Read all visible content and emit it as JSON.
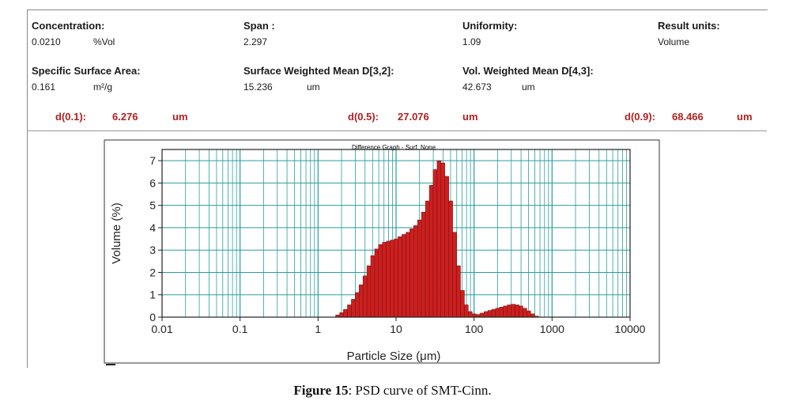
{
  "report": {
    "concentration": {
      "label": "Concentration:",
      "value": "0.0210",
      "unit": "%Vol"
    },
    "span": {
      "label": "Span :",
      "value": "2.297"
    },
    "uniformity": {
      "label": "Uniformity:",
      "value": "1.09"
    },
    "result_units": {
      "label": "Result units:",
      "value": "Volume"
    },
    "ssa": {
      "label": "Specific Surface Area:",
      "value": "0.161",
      "unit": "m²/g"
    },
    "d32": {
      "label": "Surface Weighted Mean D[3,2]:",
      "value": "15.236",
      "unit": "um"
    },
    "d43": {
      "label": "Vol. Weighted Mean D[4,3]:",
      "value": "42.673",
      "unit": "um"
    },
    "d01": {
      "label": "d(0.1):",
      "value": "6.276",
      "unit": "um"
    },
    "d05": {
      "label": "d(0.5):",
      "value": "27.076",
      "unit": "um"
    },
    "d09": {
      "label": "d(0.9):",
      "value": "68.466",
      "unit": "um"
    }
  },
  "caption": {
    "prefix": "Figure 15",
    "text": ": PSD curve of SMT-Cinn."
  },
  "colors": {
    "bar": "#cc1f1f",
    "bar_edge": "#5a0a0a",
    "grid": "#2a9d9d",
    "axis": "#222222"
  },
  "chart_data": {
    "type": "bar",
    "title": "Difference Graph - Surf. None",
    "xlabel": "Particle Size (μm)",
    "ylabel": "Volume (%)",
    "xscale": "log",
    "xlim": [
      0.01,
      10000
    ],
    "ylim": [
      0,
      7.5
    ],
    "xticks": [
      0.01,
      0.1,
      1,
      10,
      100,
      1000,
      10000
    ],
    "xtick_labels": [
      "0.01",
      "0.1",
      "1",
      "10",
      "100",
      "1000",
      "10000"
    ],
    "yticks": [
      0,
      1,
      2,
      3,
      4,
      5,
      6,
      7
    ],
    "ytick_labels": [
      "0",
      "1",
      "2",
      "3",
      "4",
      "5",
      "6",
      "7"
    ],
    "series": [
      {
        "name": "Volume (%)",
        "x": [
          1.78,
          2.0,
          2.24,
          2.52,
          2.83,
          3.17,
          3.56,
          3.99,
          4.48,
          5.02,
          5.64,
          6.32,
          7.1,
          7.96,
          8.93,
          10.0,
          11.2,
          12.6,
          14.2,
          15.9,
          17.8,
          20.0,
          22.4,
          25.2,
          28.3,
          31.7,
          35.6,
          39.9,
          44.8,
          50.2,
          56.4,
          63.2,
          71.0,
          79.6,
          89.3,
          100,
          112,
          126,
          142,
          159,
          178,
          200,
          224,
          252,
          283,
          317,
          356,
          399,
          448,
          502,
          564,
          632
        ],
        "values": [
          0.1,
          0.2,
          0.35,
          0.55,
          0.8,
          1.1,
          1.45,
          1.85,
          2.3,
          2.75,
          3.05,
          3.25,
          3.35,
          3.4,
          3.45,
          3.5,
          3.6,
          3.7,
          3.8,
          3.95,
          4.1,
          4.35,
          4.7,
          5.2,
          5.9,
          6.6,
          7.0,
          6.9,
          6.3,
          5.2,
          3.8,
          2.3,
          1.2,
          0.55,
          0.25,
          0.15,
          0.12,
          0.18,
          0.25,
          0.3,
          0.35,
          0.4,
          0.45,
          0.5,
          0.55,
          0.58,
          0.55,
          0.5,
          0.4,
          0.28,
          0.15,
          0.05
        ]
      }
    ]
  }
}
